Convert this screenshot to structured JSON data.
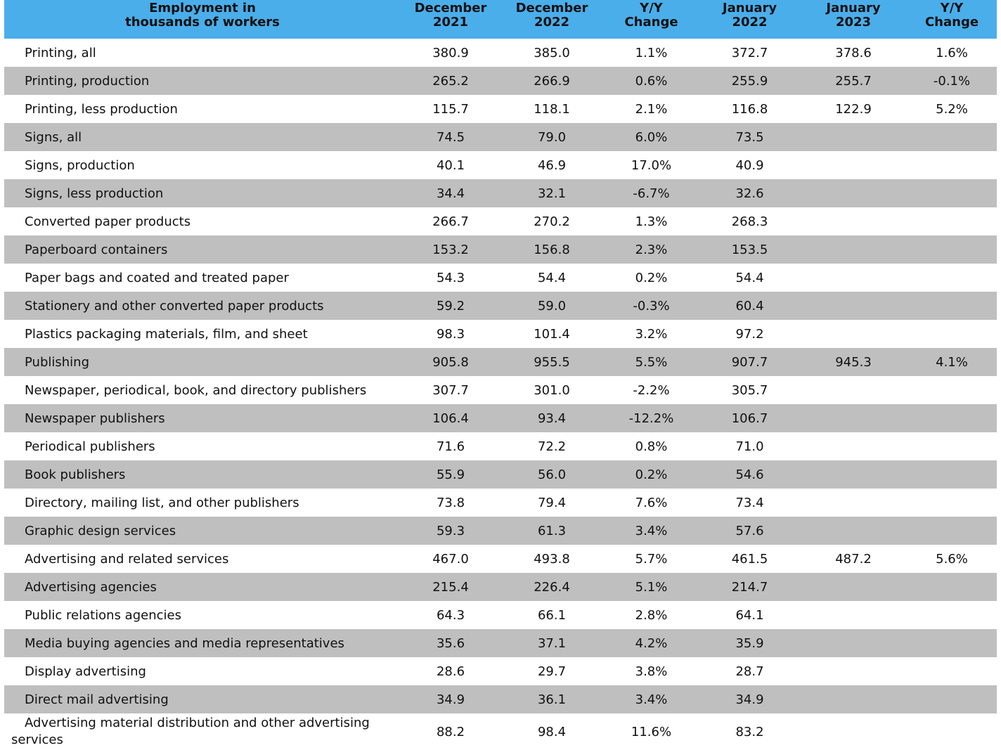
{
  "table": {
    "header": [
      [
        "Employment in",
        "thousands of workers"
      ],
      [
        "December",
        "2021"
      ],
      [
        "December",
        "2022"
      ],
      [
        "Y/Y",
        "Change"
      ],
      [
        "January",
        "2022"
      ],
      [
        "January",
        "2023"
      ],
      [
        "Y/Y",
        "Change"
      ]
    ],
    "rows": [
      [
        "Printing, all",
        "380.9",
        "385.0",
        "1.1%",
        "372.7",
        "378.6",
        "1.6%"
      ],
      [
        "Printing, production",
        "265.2",
        "266.9",
        "0.6%",
        "255.9",
        "255.7",
        "-0.1%"
      ],
      [
        "Printing, less production",
        "115.7",
        "118.1",
        "2.1%",
        "116.8",
        "122.9",
        "5.2%"
      ],
      [
        "Signs, all",
        "74.5",
        "79.0",
        "6.0%",
        "73.5",
        null,
        null
      ],
      [
        "Signs, production",
        "40.1",
        "46.9",
        "17.0%",
        "40.9",
        null,
        null
      ],
      [
        "Signs, less production",
        "34.4",
        "32.1",
        "-6.7%",
        "32.6",
        null,
        null
      ],
      [
        "Converted paper products",
        "266.7",
        "270.2",
        "1.3%",
        "268.3",
        null,
        null
      ],
      [
        "Paperboard containers",
        "153.2",
        "156.8",
        "2.3%",
        "153.5",
        null,
        null
      ],
      [
        "Paper bags and coated and treated paper",
        "54.3",
        "54.4",
        "0.2%",
        "54.4",
        null,
        null
      ],
      [
        "Stationery and other converted paper products",
        "59.2",
        "59.0",
        "-0.3%",
        "60.4",
        null,
        null
      ],
      [
        "Plastics packaging materials, film, and sheet",
        "98.3",
        "101.4",
        "3.2%",
        "97.2",
        null,
        null
      ],
      [
        "Publishing",
        "905.8",
        "955.5",
        "5.5%",
        "907.7",
        "945.3",
        "4.1%"
      ],
      [
        "Newspaper, periodical, book, and directory publishers",
        "307.7",
        "301.0",
        "-2.2%",
        "305.7",
        null,
        null
      ],
      [
        "Newspaper publishers",
        "106.4",
        "93.4",
        "-12.2%",
        "106.7",
        null,
        null
      ],
      [
        "Periodical publishers",
        "71.6",
        "72.2",
        "0.8%",
        "71.0",
        null,
        null
      ],
      [
        "Book publishers",
        "55.9",
        "56.0",
        "0.2%",
        "54.6",
        null,
        null
      ],
      [
        "Directory, mailing list, and other publishers",
        "73.8",
        "79.4",
        "7.6%",
        "73.4",
        null,
        null
      ],
      [
        "Graphic design services",
        "59.3",
        "61.3",
        "3.4%",
        "57.6",
        null,
        null
      ],
      [
        "Advertising and related services",
        "467.0",
        "493.8",
        "5.7%",
        "461.5",
        "487.2",
        "5.6%"
      ],
      [
        "Advertising agencies",
        "215.4",
        "226.4",
        "5.1%",
        "214.7",
        null,
        null
      ],
      [
        "Public relations agencies",
        "64.3",
        "66.1",
        "2.8%",
        "64.1",
        null,
        null
      ],
      [
        "Media buying agencies and media representatives",
        "35.6",
        "37.1",
        "4.2%",
        "35.9",
        null,
        null
      ],
      [
        "Display advertising",
        "28.6",
        "29.7",
        "3.8%",
        "28.7",
        null,
        null
      ],
      [
        "Direct mail advertising",
        "34.9",
        "36.1",
        "3.4%",
        "34.9",
        null,
        null
      ],
      [
        "Advertising material distribution and other advertising services",
        "88.2",
        "98.4",
        "11.6%",
        "83.2",
        null,
        null
      ]
    ]
  }
}
